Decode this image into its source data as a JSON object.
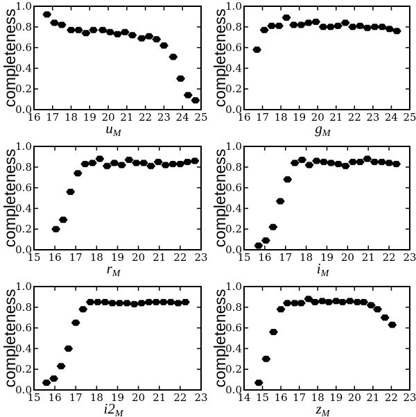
{
  "chart_data": [
    {
      "type": "scatter",
      "xlabel": "u",
      "xlabel_sub": "M",
      "ylabel": "completeness",
      "xlim": [
        16,
        25
      ],
      "ylim": [
        0,
        1
      ],
      "xticks": [
        "16",
        "17",
        "18",
        "19",
        "20",
        "21",
        "22",
        "23",
        "24",
        "25"
      ],
      "yticks": [
        "0.0",
        "0.2",
        "0.4",
        "0.6",
        "0.8",
        "1.0"
      ],
      "x": [
        16.7,
        17.1,
        17.5,
        18.0,
        18.4,
        18.8,
        19.2,
        19.7,
        20.1,
        20.5,
        20.9,
        21.3,
        21.8,
        22.2,
        22.6,
        23.0,
        23.5,
        23.9,
        24.3,
        24.7
      ],
      "y": [
        0.92,
        0.84,
        0.82,
        0.77,
        0.77,
        0.74,
        0.77,
        0.77,
        0.75,
        0.73,
        0.75,
        0.72,
        0.69,
        0.71,
        0.68,
        0.62,
        0.51,
        0.3,
        0.14,
        0.09
      ]
    },
    {
      "type": "scatter",
      "xlabel": "g",
      "xlabel_sub": "M",
      "ylabel": "completeness",
      "xlim": [
        16,
        25
      ],
      "ylim": [
        0,
        1
      ],
      "xticks": [
        "16",
        "17",
        "18",
        "19",
        "20",
        "21",
        "22",
        "23",
        "24",
        "25"
      ],
      "yticks": [
        "0.0",
        "0.2",
        "0.4",
        "0.6",
        "0.8",
        "1.0"
      ],
      "x": [
        16.7,
        17.1,
        17.5,
        17.9,
        18.3,
        18.7,
        19.1,
        19.5,
        19.9,
        20.3,
        20.7,
        21.1,
        21.5,
        21.9,
        22.3,
        22.7,
        23.1,
        23.5,
        23.9,
        24.3
      ],
      "y": [
        0.58,
        0.77,
        0.81,
        0.81,
        0.89,
        0.82,
        0.82,
        0.84,
        0.85,
        0.8,
        0.8,
        0.81,
        0.84,
        0.8,
        0.81,
        0.79,
        0.8,
        0.8,
        0.78,
        0.76
      ]
    },
    {
      "type": "scatter",
      "xlabel": "r",
      "xlabel_sub": "M",
      "ylabel": "completeness",
      "xlim": [
        15,
        23
      ],
      "ylim": [
        0,
        1
      ],
      "xticks": [
        "15",
        "16",
        "17",
        "18",
        "19",
        "20",
        "21",
        "22",
        "23"
      ],
      "yticks": [
        "0.0",
        "0.2",
        "0.4",
        "0.6",
        "0.8",
        "1.0"
      ],
      "x": [
        16.05,
        16.4,
        16.75,
        17.1,
        17.45,
        17.8,
        18.15,
        18.5,
        18.85,
        19.2,
        19.55,
        19.9,
        20.25,
        20.6,
        20.95,
        21.3,
        21.65,
        22.0,
        22.35,
        22.7
      ],
      "y": [
        0.2,
        0.29,
        0.56,
        0.74,
        0.83,
        0.84,
        0.88,
        0.81,
        0.84,
        0.82,
        0.87,
        0.84,
        0.84,
        0.81,
        0.85,
        0.82,
        0.83,
        0.83,
        0.85,
        0.86
      ]
    },
    {
      "type": "scatter",
      "xlabel": "i",
      "xlabel_sub": "M",
      "ylabel": "completeness",
      "xlim": [
        15,
        23
      ],
      "ylim": [
        0,
        1
      ],
      "xticks": [
        "15",
        "16",
        "17",
        "18",
        "19",
        "20",
        "21",
        "22",
        "23"
      ],
      "yticks": [
        "0.0",
        "0.2",
        "0.4",
        "0.6",
        "0.8",
        "1.0"
      ],
      "x": [
        15.7,
        16.05,
        16.4,
        16.75,
        17.1,
        17.45,
        17.8,
        18.15,
        18.5,
        18.85,
        19.2,
        19.55,
        19.9,
        20.25,
        20.6,
        20.95,
        21.3,
        21.65,
        22.0,
        22.35
      ],
      "y": [
        0.04,
        0.09,
        0.22,
        0.47,
        0.68,
        0.84,
        0.87,
        0.82,
        0.86,
        0.85,
        0.84,
        0.83,
        0.81,
        0.85,
        0.85,
        0.88,
        0.85,
        0.85,
        0.84,
        0.83
      ]
    },
    {
      "type": "scatter",
      "xlabel": "i2",
      "xlabel_sub": "M",
      "ylabel": "completeness",
      "xlim": [
        15,
        23
      ],
      "ylim": [
        0,
        1
      ],
      "xticks": [
        "15",
        "16",
        "17",
        "18",
        "19",
        "20",
        "21",
        "22",
        "23"
      ],
      "yticks": [
        "0.0",
        "0.2",
        "0.4",
        "0.6",
        "0.8",
        "1.0"
      ],
      "x": [
        15.6,
        15.95,
        16.3,
        16.65,
        17.0,
        17.35,
        17.7,
        18.05,
        18.4,
        18.75,
        19.1,
        19.45,
        19.8,
        20.15,
        20.5,
        20.85,
        21.2,
        21.55,
        21.9,
        22.25
      ],
      "y": [
        0.07,
        0.11,
        0.23,
        0.4,
        0.65,
        0.78,
        0.85,
        0.85,
        0.85,
        0.84,
        0.84,
        0.84,
        0.83,
        0.84,
        0.85,
        0.85,
        0.85,
        0.85,
        0.84,
        0.85
      ]
    },
    {
      "type": "scatter",
      "xlabel": "z",
      "xlabel_sub": "M",
      "ylabel": "completeness",
      "xlim": [
        14,
        23
      ],
      "ylim": [
        0,
        1
      ],
      "xticks": [
        "14",
        "15",
        "16",
        "17",
        "18",
        "19",
        "20",
        "21",
        "22",
        "23"
      ],
      "yticks": [
        "0.0",
        "0.2",
        "0.4",
        "0.6",
        "0.8",
        "1.0"
      ],
      "x": [
        14.8,
        15.2,
        15.6,
        16.0,
        16.35,
        16.75,
        17.1,
        17.5,
        17.85,
        18.25,
        18.6,
        19.0,
        19.35,
        19.75,
        20.15,
        20.5,
        20.9,
        21.25,
        21.65,
        22.05
      ],
      "y": [
        0.07,
        0.3,
        0.56,
        0.78,
        0.84,
        0.84,
        0.84,
        0.88,
        0.85,
        0.86,
        0.85,
        0.86,
        0.85,
        0.86,
        0.85,
        0.85,
        0.82,
        0.78,
        0.7,
        0.63
      ]
    }
  ]
}
